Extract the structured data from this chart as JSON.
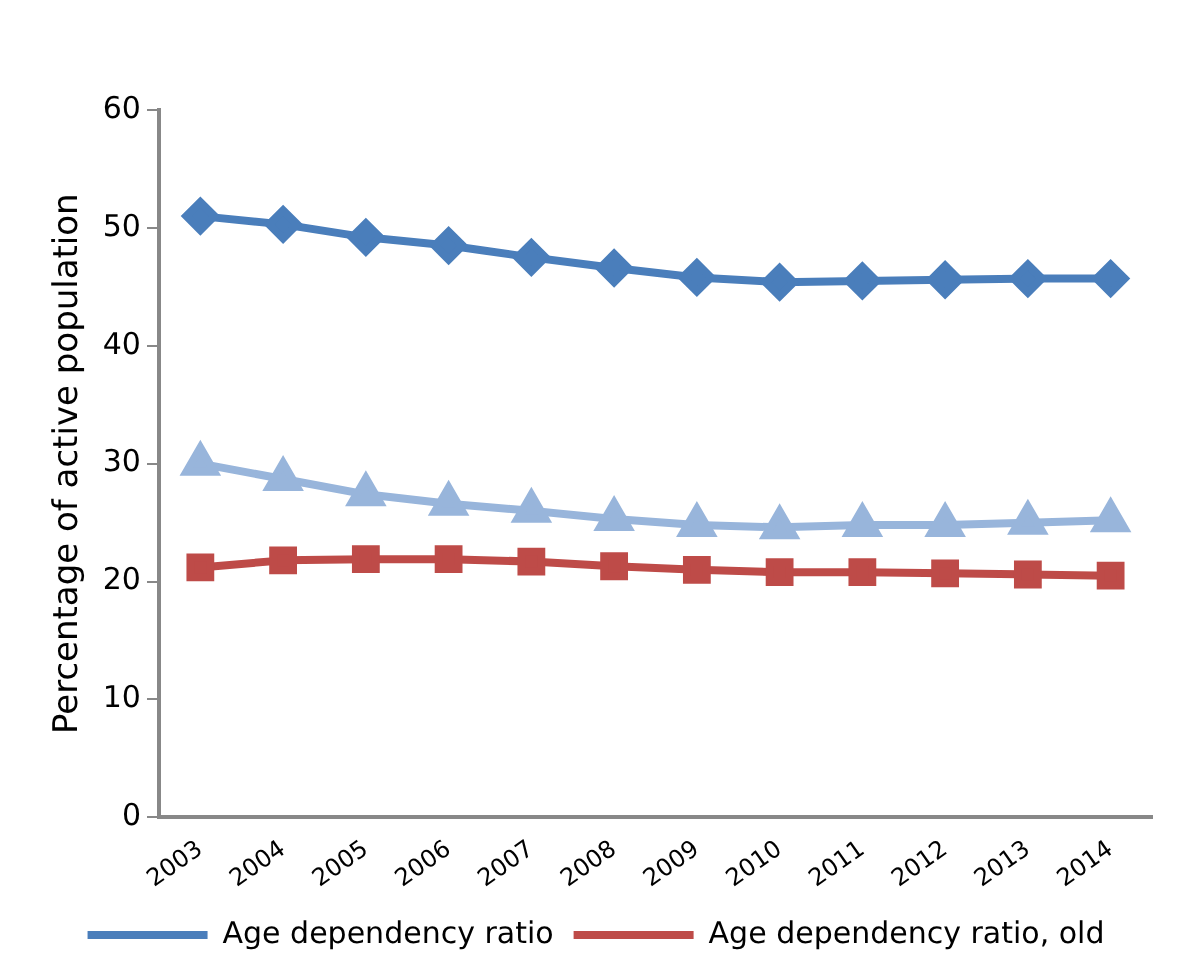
{
  "chart_data": {
    "type": "line",
    "ylabel": "Percentage of active population",
    "categories": [
      "2003",
      "2004",
      "2005",
      "2006",
      "2007",
      "2008",
      "2009",
      "2010",
      "2011",
      "2012",
      "2013",
      "2014"
    ],
    "series": [
      {
        "name": "Age dependency ratio",
        "color": "#4a7ebb",
        "marker": "diamond",
        "values": [
          51,
          50.3,
          49.2,
          48.5,
          47.5,
          46.6,
          45.8,
          45.4,
          45.5,
          45.6,
          45.7,
          45.7
        ]
      },
      {
        "name": "Age dependency ratio, old",
        "color": "#be4b48",
        "marker": "square",
        "values": [
          21.2,
          21.8,
          21.9,
          21.9,
          21.7,
          21.3,
          21,
          20.8,
          20.8,
          20.7,
          20.6,
          20.5
        ]
      },
      {
        "color": "#98b5db",
        "marker": "triangle",
        "values": [
          30,
          28.7,
          27.4,
          26.6,
          26,
          25.3,
          24.8,
          24.6,
          24.8,
          24.8,
          25,
          25.2
        ]
      }
    ],
    "ylim": [
      0,
      60
    ],
    "yticks": [
      0,
      10,
      20,
      30,
      40,
      50,
      60
    ],
    "grid": false,
    "legend": "bottom",
    "line_style": "solid"
  }
}
